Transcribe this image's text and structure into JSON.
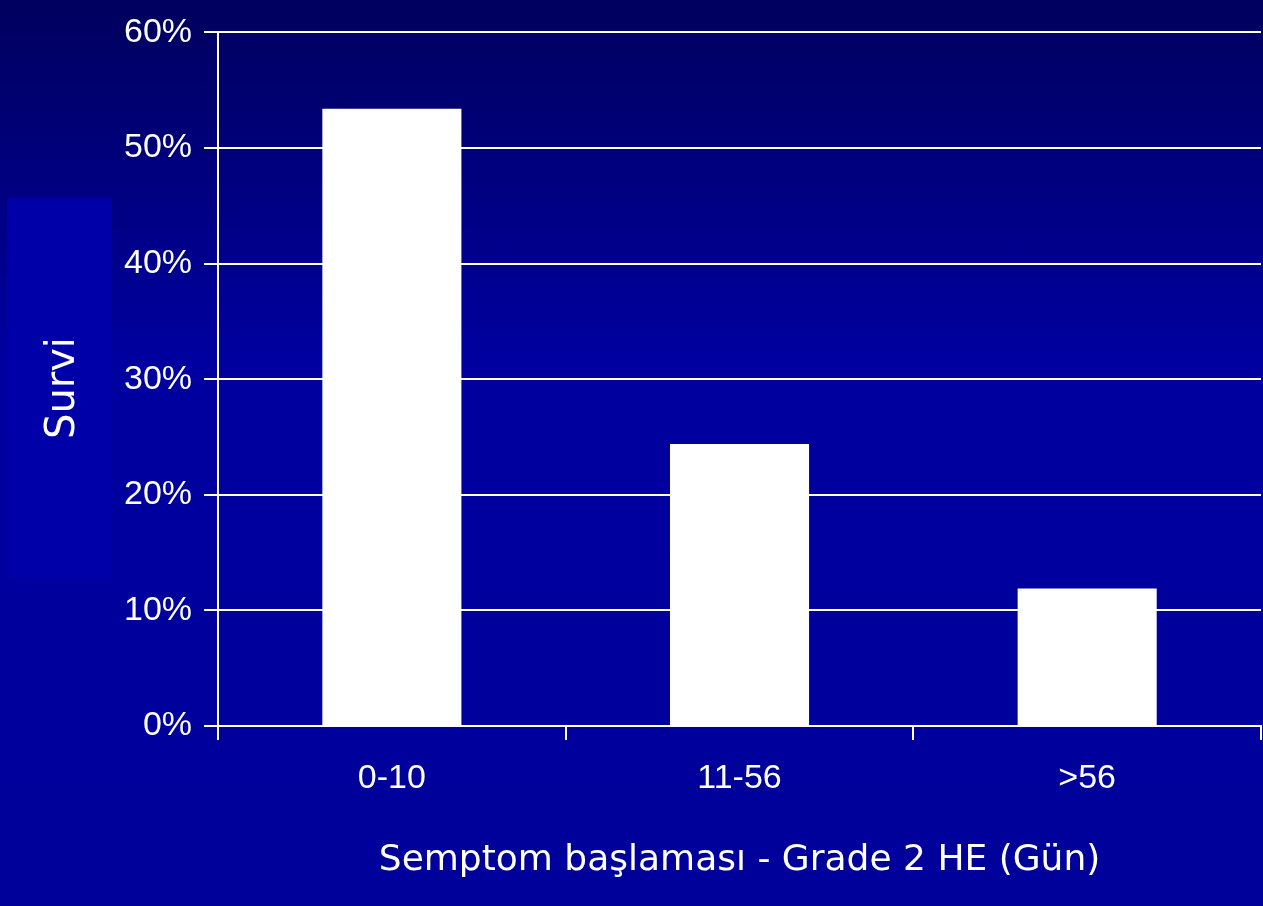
{
  "chart_data": {
    "type": "bar",
    "xlabel": "Semptom başlaması - Grade 2 HE (Gün)",
    "ylabel": "Survi",
    "categories": [
      "0-10",
      "11-56",
      ">56"
    ],
    "values": [
      53.4,
      24.4,
      11.9
    ],
    "color": "#ffffff",
    "ylim": [
      0,
      60
    ],
    "yticks": [
      {
        "value": 0,
        "label": "0%"
      },
      {
        "value": 10,
        "label": "10%"
      },
      {
        "value": 20,
        "label": "20%"
      },
      {
        "value": 30,
        "label": "30%"
      },
      {
        "value": 40,
        "label": "40%"
      },
      {
        "value": 50,
        "label": "50%"
      },
      {
        "value": 60,
        "label": "60%"
      }
    ],
    "grid": "y"
  }
}
